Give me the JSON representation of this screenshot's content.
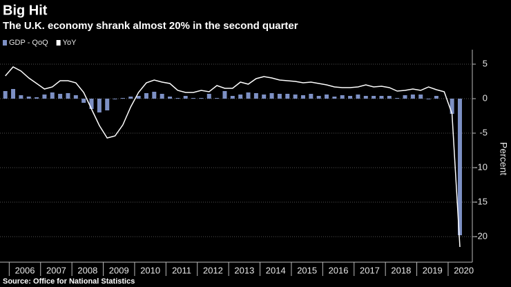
{
  "chart_data": {
    "type": "bar-line",
    "title": "Big Hit",
    "subtitle": "The U.K. economy shrank almost 20% in the second quarter",
    "source": "Source: Office for National Statistics",
    "y_label": "Percent",
    "categories": [
      null,
      null,
      "2006",
      null,
      null,
      null,
      "2007",
      null,
      null,
      null,
      "2008",
      null,
      null,
      null,
      "2009",
      null,
      null,
      null,
      "2010",
      null,
      null,
      null,
      "2011",
      null,
      null,
      null,
      "2012",
      null,
      null,
      null,
      "2013",
      null,
      null,
      null,
      "2014",
      null,
      null,
      null,
      "2015",
      null,
      null,
      null,
      "2016",
      null,
      null,
      null,
      "2017",
      null,
      null,
      null,
      "2018",
      null,
      null,
      null,
      "2019",
      null,
      null,
      null,
      "2020"
    ],
    "series": [
      {
        "name": "GDP - QoQ",
        "color": "#7d90c4",
        "kind": "bar",
        "values": [
          1.1,
          1.4,
          0.5,
          0.3,
          0.2,
          0.6,
          0.9,
          0.7,
          0.8,
          0.5,
          -0.6,
          -1.5,
          -2.0,
          -1.7,
          -0.1,
          0.1,
          0.3,
          0.4,
          0.8,
          1.0,
          0.7,
          0.3,
          0.1,
          0.4,
          0.1,
          0.1,
          0.7,
          0.1,
          1.1,
          0.4,
          0.6,
          0.9,
          0.8,
          0.6,
          0.8,
          0.7,
          0.7,
          0.6,
          0.5,
          0.7,
          0.4,
          0.6,
          0.3,
          0.5,
          0.4,
          0.6,
          0.4,
          0.4,
          0.4,
          0.4,
          0.1,
          0.5,
          0.6,
          0.6,
          -0.1,
          0.4,
          0.0,
          -2.2,
          -19.8
        ]
      },
      {
        "name": "YoY",
        "color": "#ffffff",
        "kind": "line",
        "values": [
          3.3,
          4.6,
          4.0,
          3.0,
          2.2,
          1.4,
          1.7,
          2.6,
          2.6,
          2.3,
          0.9,
          -1.5,
          -3.9,
          -5.7,
          -5.4,
          -3.8,
          -1.2,
          0.9,
          2.3,
          2.7,
          2.4,
          2.2,
          1.2,
          0.9,
          0.9,
          1.2,
          1.0,
          1.9,
          1.5,
          1.5,
          2.4,
          2.1,
          2.9,
          3.2,
          3.0,
          2.7,
          2.6,
          2.5,
          2.3,
          2.4,
          2.2,
          2.0,
          1.7,
          1.6,
          1.6,
          1.7,
          2.0,
          1.7,
          1.8,
          1.6,
          1.1,
          1.2,
          1.4,
          1.2,
          1.7,
          1.3,
          1.0,
          -2.2,
          -21.5
        ]
      }
    ],
    "ylim": [
      -23.7,
      7.1
    ],
    "yticks": [
      5,
      0,
      -5,
      -10,
      -15,
      -20
    ],
    "grid": true
  }
}
